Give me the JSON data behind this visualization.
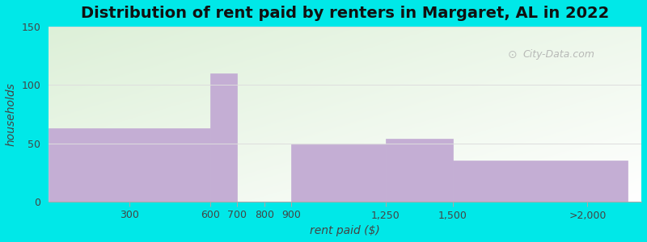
{
  "title": "Distribution of rent paid by renters in Margaret, AL in 2022",
  "xlabel": "rent paid ($)",
  "ylabel": "households",
  "tick_labels": [
    "300",
    "600",
    "700",
    "800",
    "900",
    "1,250",
    "1,500",
    ">2,000"
  ],
  "tick_positions": [
    300,
    600,
    700,
    800,
    900,
    1250,
    1500,
    2000
  ],
  "bar_lefts": [
    0,
    600,
    700,
    900,
    1250,
    1500
  ],
  "bar_rights": [
    600,
    700,
    800,
    1250,
    1500,
    2150
  ],
  "bar_heights": [
    63,
    110,
    0,
    49,
    54,
    35
  ],
  "bar_color": "#c4aed4",
  "ylim": [
    0,
    150
  ],
  "yticks": [
    0,
    50,
    100,
    150
  ],
  "xlim_left": 0,
  "xlim_right": 2200,
  "bg_outer": "#00e8e8",
  "bg_plot_color1": "#ddf0d8",
  "bg_plot_color2": "#f0f8ff",
  "title_fontsize": 14,
  "axis_label_fontsize": 10,
  "tick_fontsize": 9,
  "watermark": "City-Data.com",
  "grid_color": "#dddddd"
}
